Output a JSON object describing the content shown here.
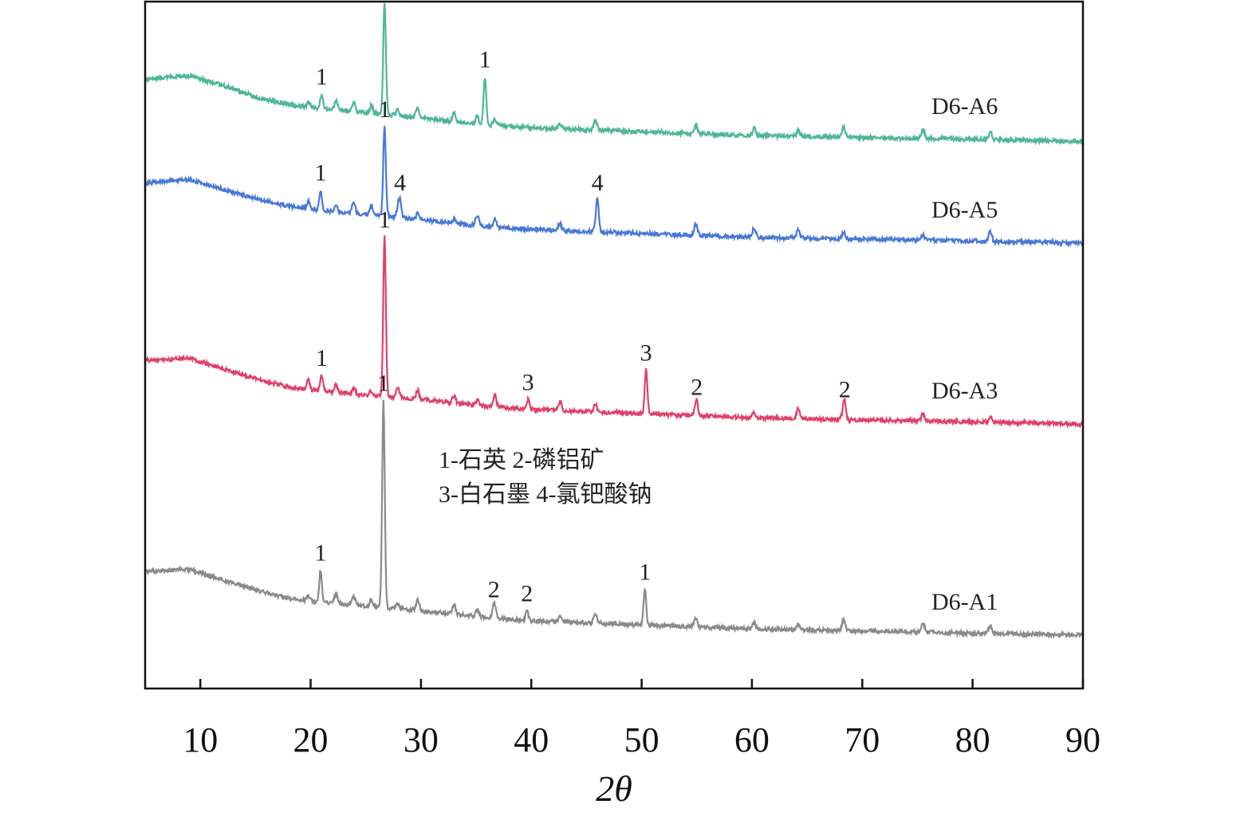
{
  "chart_data": {
    "type": "line",
    "title": "",
    "xlabel": "2θ",
    "ylabel": "",
    "xlim": [
      5,
      90
    ],
    "x_ticks": [
      10,
      20,
      30,
      40,
      50,
      60,
      70,
      80,
      90
    ],
    "y_ticks_shown": false,
    "grid": false,
    "legend_text": [
      "1-石英 2-磷铝矿",
      "3-白石墨 4-氯钯酸钠"
    ],
    "series": [
      {
        "name": "D6-A6",
        "color": "#4fb69a",
        "background": [
          [
            5,
            0.93
          ],
          [
            9,
            0.95
          ],
          [
            12,
            0.9
          ],
          [
            15,
            0.84
          ],
          [
            18,
            0.8
          ],
          [
            21,
            0.78
          ],
          [
            25,
            0.76
          ],
          [
            30,
            0.73
          ],
          [
            35,
            0.7
          ],
          [
            40,
            0.68
          ],
          [
            50,
            0.66
          ],
          [
            60,
            0.64
          ],
          [
            70,
            0.63
          ],
          [
            80,
            0.62
          ],
          [
            90,
            0.61
          ]
        ],
        "peaks": [
          {
            "x": 21.0,
            "label": "1"
          },
          {
            "x": 26.7,
            "label": "1"
          },
          {
            "x": 35.8,
            "label": "1"
          }
        ]
      },
      {
        "name": "D6-A5",
        "color": "#4a78d8",
        "background": [
          [
            5,
            0.93
          ],
          [
            9,
            0.95
          ],
          [
            12,
            0.9
          ],
          [
            15,
            0.85
          ],
          [
            18,
            0.81
          ],
          [
            21,
            0.79
          ],
          [
            25,
            0.77
          ],
          [
            30,
            0.74
          ],
          [
            35,
            0.71
          ],
          [
            40,
            0.69
          ],
          [
            50,
            0.67
          ],
          [
            60,
            0.65
          ],
          [
            70,
            0.64
          ],
          [
            80,
            0.63
          ],
          [
            90,
            0.62
          ]
        ],
        "peaks": [
          {
            "x": 20.9,
            "label": "1"
          },
          {
            "x": 26.7,
            "label": "1"
          },
          {
            "x": 28.1,
            "label": "4"
          },
          {
            "x": 46.0,
            "label": "4"
          }
        ]
      },
      {
        "name": "D6-A3",
        "color": "#e0406a",
        "background": [
          [
            5,
            0.93
          ],
          [
            9,
            0.94
          ],
          [
            12,
            0.89
          ],
          [
            15,
            0.84
          ],
          [
            18,
            0.8
          ],
          [
            21,
            0.78
          ],
          [
            25,
            0.76
          ],
          [
            30,
            0.74
          ],
          [
            35,
            0.71
          ],
          [
            40,
            0.69
          ],
          [
            50,
            0.67
          ],
          [
            60,
            0.65
          ],
          [
            70,
            0.64
          ],
          [
            80,
            0.63
          ],
          [
            90,
            0.62
          ]
        ],
        "peaks": [
          {
            "x": 21.0,
            "label": "1"
          },
          {
            "x": 26.7,
            "label": "1"
          },
          {
            "x": 39.7,
            "label": "3"
          },
          {
            "x": 50.4,
            "label": "3"
          },
          {
            "x": 55.0,
            "label": "2"
          },
          {
            "x": 68.4,
            "label": "2"
          }
        ]
      },
      {
        "name": "D6-A1",
        "color": "#8a8a8a",
        "background": [
          [
            5,
            0.93
          ],
          [
            9,
            0.94
          ],
          [
            12,
            0.89
          ],
          [
            15,
            0.84
          ],
          [
            18,
            0.8
          ],
          [
            21,
            0.78
          ],
          [
            25,
            0.76
          ],
          [
            30,
            0.74
          ],
          [
            35,
            0.71
          ],
          [
            40,
            0.69
          ],
          [
            50,
            0.67
          ],
          [
            60,
            0.65
          ],
          [
            70,
            0.64
          ],
          [
            80,
            0.63
          ],
          [
            90,
            0.62
          ]
        ],
        "peaks": [
          {
            "x": 20.9,
            "label": "1"
          },
          {
            "x": 26.6,
            "label": "1"
          },
          {
            "x": 36.6,
            "label": "2"
          },
          {
            "x": 39.6,
            "label": "2"
          },
          {
            "x": 50.3,
            "label": "1"
          }
        ]
      }
    ]
  }
}
